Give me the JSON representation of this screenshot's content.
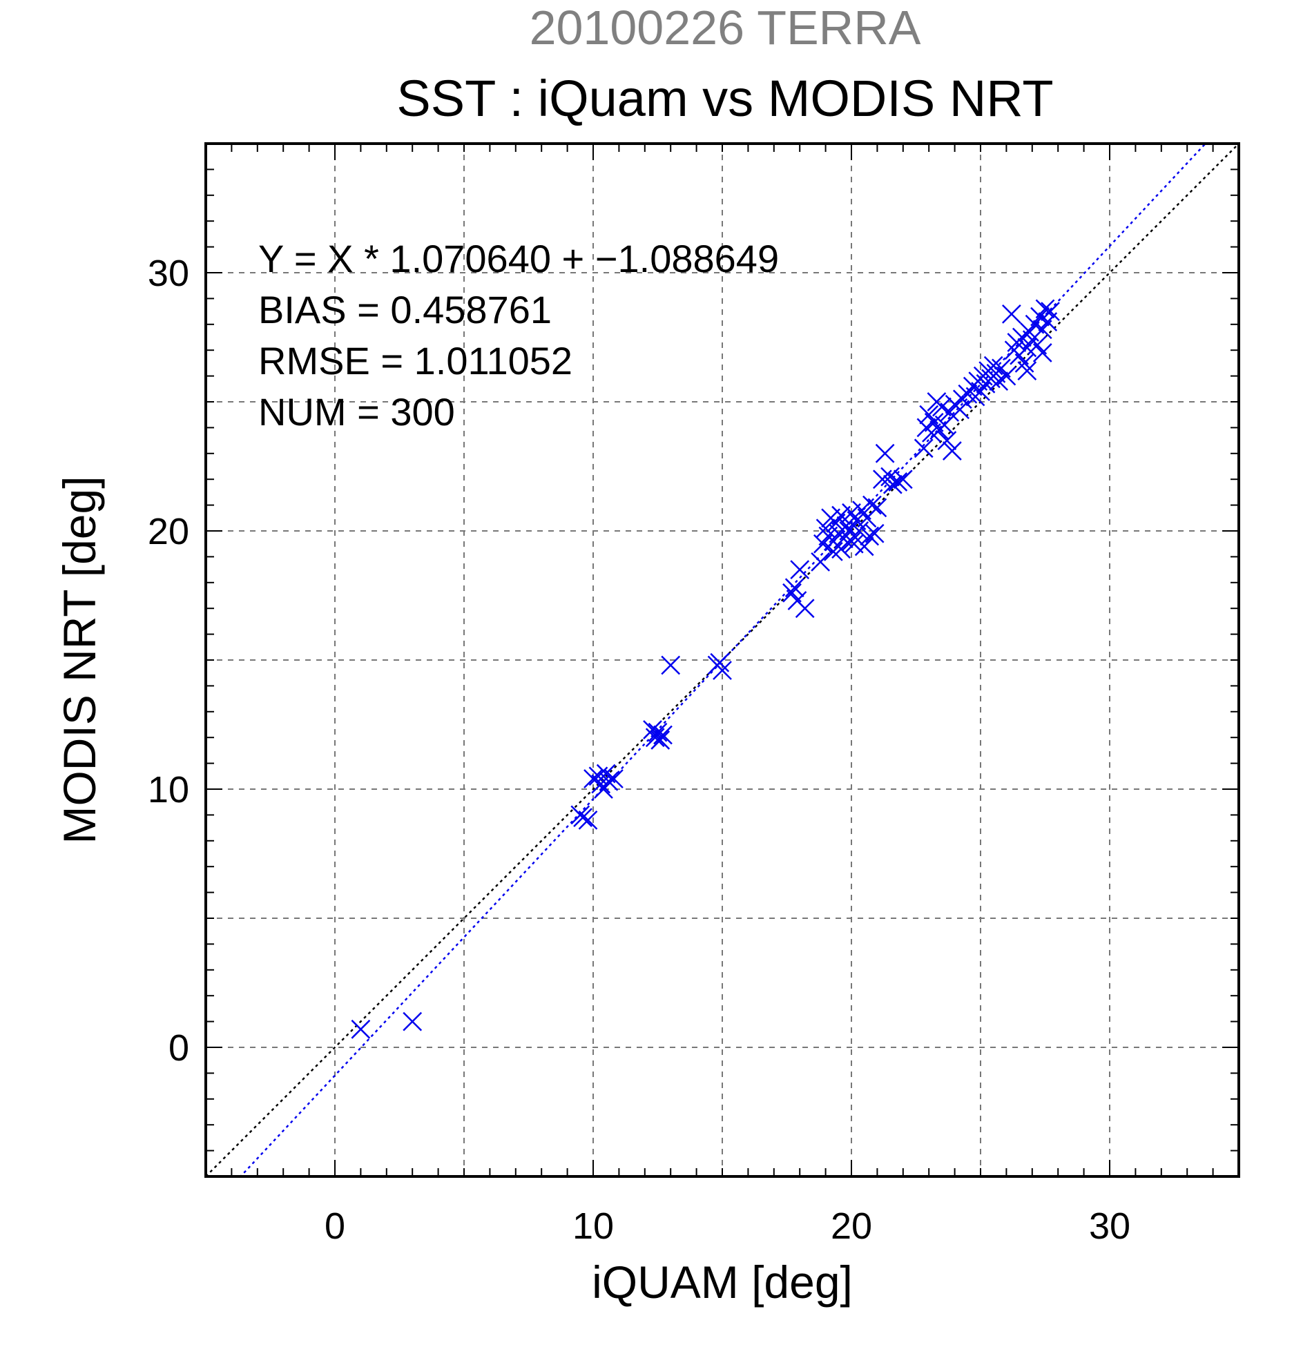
{
  "colors": {
    "background": "#ffffff",
    "frame": "#000000",
    "grid": "#777777",
    "supertitle": "#808080",
    "points": "#0000ee",
    "fit_line": "#0000ee",
    "identity_line": "#000000"
  },
  "chart_data": {
    "type": "scatter",
    "supertitle": "20100226 TERRA",
    "title": "SST : iQuam vs MODIS NRT",
    "xlabel": "iQUAM [deg]",
    "ylabel": "MODIS NRT [deg]",
    "xlim": [
      -5,
      35
    ],
    "ylim": [
      -5,
      35
    ],
    "xticks": [
      0,
      10,
      20,
      30
    ],
    "yticks": [
      0,
      10,
      20,
      30
    ],
    "xtick_labels": [
      "0",
      "10",
      "20",
      "30"
    ],
    "ytick_labels": [
      "0",
      "10",
      "20",
      "30"
    ],
    "grid": true,
    "grid_step": 5,
    "minor_tick_step": 1,
    "marker": "x",
    "stats": {
      "equation": "Y = X * 1.070640 + −1.088649",
      "bias": "BIAS = 0.458761",
      "rmse": "RMSE = 1.011052",
      "num": "NUM = 300"
    },
    "lines": [
      {
        "kind": "identity",
        "slope": 1.0,
        "intercept": 0.0,
        "style": "dotted",
        "color": "#000000"
      },
      {
        "kind": "regression",
        "slope": 1.07064,
        "intercept": -1.088649,
        "style": "dotted",
        "color": "#0000ee"
      }
    ],
    "points": [
      {
        "x": 1.0,
        "y": 0.7
      },
      {
        "x": 3.0,
        "y": 1.0
      },
      {
        "x": 9.5,
        "y": 9.0
      },
      {
        "x": 9.6,
        "y": 8.9
      },
      {
        "x": 9.8,
        "y": 8.8
      },
      {
        "x": 10.0,
        "y": 10.4
      },
      {
        "x": 10.2,
        "y": 10.5
      },
      {
        "x": 10.3,
        "y": 10.2
      },
      {
        "x": 10.5,
        "y": 10.6
      },
      {
        "x": 10.6,
        "y": 10.3
      },
      {
        "x": 10.8,
        "y": 10.4
      },
      {
        "x": 10.4,
        "y": 10.0
      },
      {
        "x": 12.3,
        "y": 12.3
      },
      {
        "x": 12.4,
        "y": 12.0
      },
      {
        "x": 12.5,
        "y": 12.2
      },
      {
        "x": 12.6,
        "y": 11.9
      },
      {
        "x": 12.7,
        "y": 12.1
      },
      {
        "x": 13.0,
        "y": 14.8
      },
      {
        "x": 14.8,
        "y": 14.8
      },
      {
        "x": 15.0,
        "y": 14.6
      },
      {
        "x": 14.9,
        "y": 14.9
      },
      {
        "x": 17.7,
        "y": 17.6
      },
      {
        "x": 17.9,
        "y": 17.3
      },
      {
        "x": 18.2,
        "y": 17.0
      },
      {
        "x": 18.0,
        "y": 18.5
      },
      {
        "x": 17.8,
        "y": 17.8
      },
      {
        "x": 18.8,
        "y": 18.8
      },
      {
        "x": 18.9,
        "y": 19.5
      },
      {
        "x": 19.0,
        "y": 20.1
      },
      {
        "x": 19.1,
        "y": 19.8
      },
      {
        "x": 19.2,
        "y": 20.5
      },
      {
        "x": 19.3,
        "y": 19.6
      },
      {
        "x": 19.4,
        "y": 20.3
      },
      {
        "x": 19.5,
        "y": 19.9
      },
      {
        "x": 19.6,
        "y": 20.6
      },
      {
        "x": 19.7,
        "y": 19.7
      },
      {
        "x": 19.8,
        "y": 20.2
      },
      {
        "x": 19.9,
        "y": 20.0
      },
      {
        "x": 20.0,
        "y": 20.7
      },
      {
        "x": 20.1,
        "y": 19.5
      },
      {
        "x": 20.2,
        "y": 20.4
      },
      {
        "x": 20.3,
        "y": 20.0
      },
      {
        "x": 20.4,
        "y": 20.8
      },
      {
        "x": 20.5,
        "y": 19.4
      },
      {
        "x": 20.6,
        "y": 20.5
      },
      {
        "x": 20.7,
        "y": 19.8
      },
      {
        "x": 20.8,
        "y": 21.0
      },
      {
        "x": 20.9,
        "y": 19.9
      },
      {
        "x": 21.0,
        "y": 20.9
      },
      {
        "x": 19.3,
        "y": 19.2
      },
      {
        "x": 19.6,
        "y": 19.3
      },
      {
        "x": 20.0,
        "y": 19.6
      },
      {
        "x": 21.2,
        "y": 22.0
      },
      {
        "x": 21.3,
        "y": 23.0
      },
      {
        "x": 21.5,
        "y": 22.1
      },
      {
        "x": 21.6,
        "y": 21.8
      },
      {
        "x": 21.8,
        "y": 21.9
      },
      {
        "x": 22.0,
        "y": 22.0
      },
      {
        "x": 22.8,
        "y": 23.2
      },
      {
        "x": 22.9,
        "y": 24.0
      },
      {
        "x": 23.0,
        "y": 24.5
      },
      {
        "x": 23.1,
        "y": 23.8
      },
      {
        "x": 23.2,
        "y": 24.2
      },
      {
        "x": 23.3,
        "y": 25.0
      },
      {
        "x": 23.4,
        "y": 23.9
      },
      {
        "x": 23.5,
        "y": 24.8
      },
      {
        "x": 23.6,
        "y": 24.1
      },
      {
        "x": 23.7,
        "y": 23.5
      },
      {
        "x": 23.8,
        "y": 24.6
      },
      {
        "x": 23.9,
        "y": 23.1
      },
      {
        "x": 24.0,
        "y": 24.9
      },
      {
        "x": 24.2,
        "y": 24.7
      },
      {
        "x": 24.3,
        "y": 25.1
      },
      {
        "x": 24.5,
        "y": 25.3
      },
      {
        "x": 24.7,
        "y": 25.6
      },
      {
        "x": 24.8,
        "y": 25.2
      },
      {
        "x": 24.9,
        "y": 25.8
      },
      {
        "x": 25.0,
        "y": 25.4
      },
      {
        "x": 25.1,
        "y": 26.0
      },
      {
        "x": 25.2,
        "y": 25.7
      },
      {
        "x": 25.3,
        "y": 26.2
      },
      {
        "x": 25.4,
        "y": 25.9
      },
      {
        "x": 25.5,
        "y": 26.4
      },
      {
        "x": 25.6,
        "y": 26.1
      },
      {
        "x": 25.7,
        "y": 25.8
      },
      {
        "x": 25.8,
        "y": 26.3
      },
      {
        "x": 26.0,
        "y": 26.0
      },
      {
        "x": 26.2,
        "y": 28.4
      },
      {
        "x": 26.3,
        "y": 27.0
      },
      {
        "x": 26.4,
        "y": 27.3
      },
      {
        "x": 26.5,
        "y": 26.8
      },
      {
        "x": 26.6,
        "y": 27.5
      },
      {
        "x": 26.7,
        "y": 26.5
      },
      {
        "x": 26.8,
        "y": 27.1
      },
      {
        "x": 26.9,
        "y": 27.7
      },
      {
        "x": 27.0,
        "y": 27.4
      },
      {
        "x": 27.1,
        "y": 28.0
      },
      {
        "x": 27.2,
        "y": 27.2
      },
      {
        "x": 27.3,
        "y": 28.3
      },
      {
        "x": 27.4,
        "y": 27.8
      },
      {
        "x": 27.5,
        "y": 28.6
      },
      {
        "x": 27.6,
        "y": 28.1
      },
      {
        "x": 27.7,
        "y": 28.5
      },
      {
        "x": 26.8,
        "y": 26.2
      },
      {
        "x": 27.4,
        "y": 26.9
      }
    ]
  }
}
